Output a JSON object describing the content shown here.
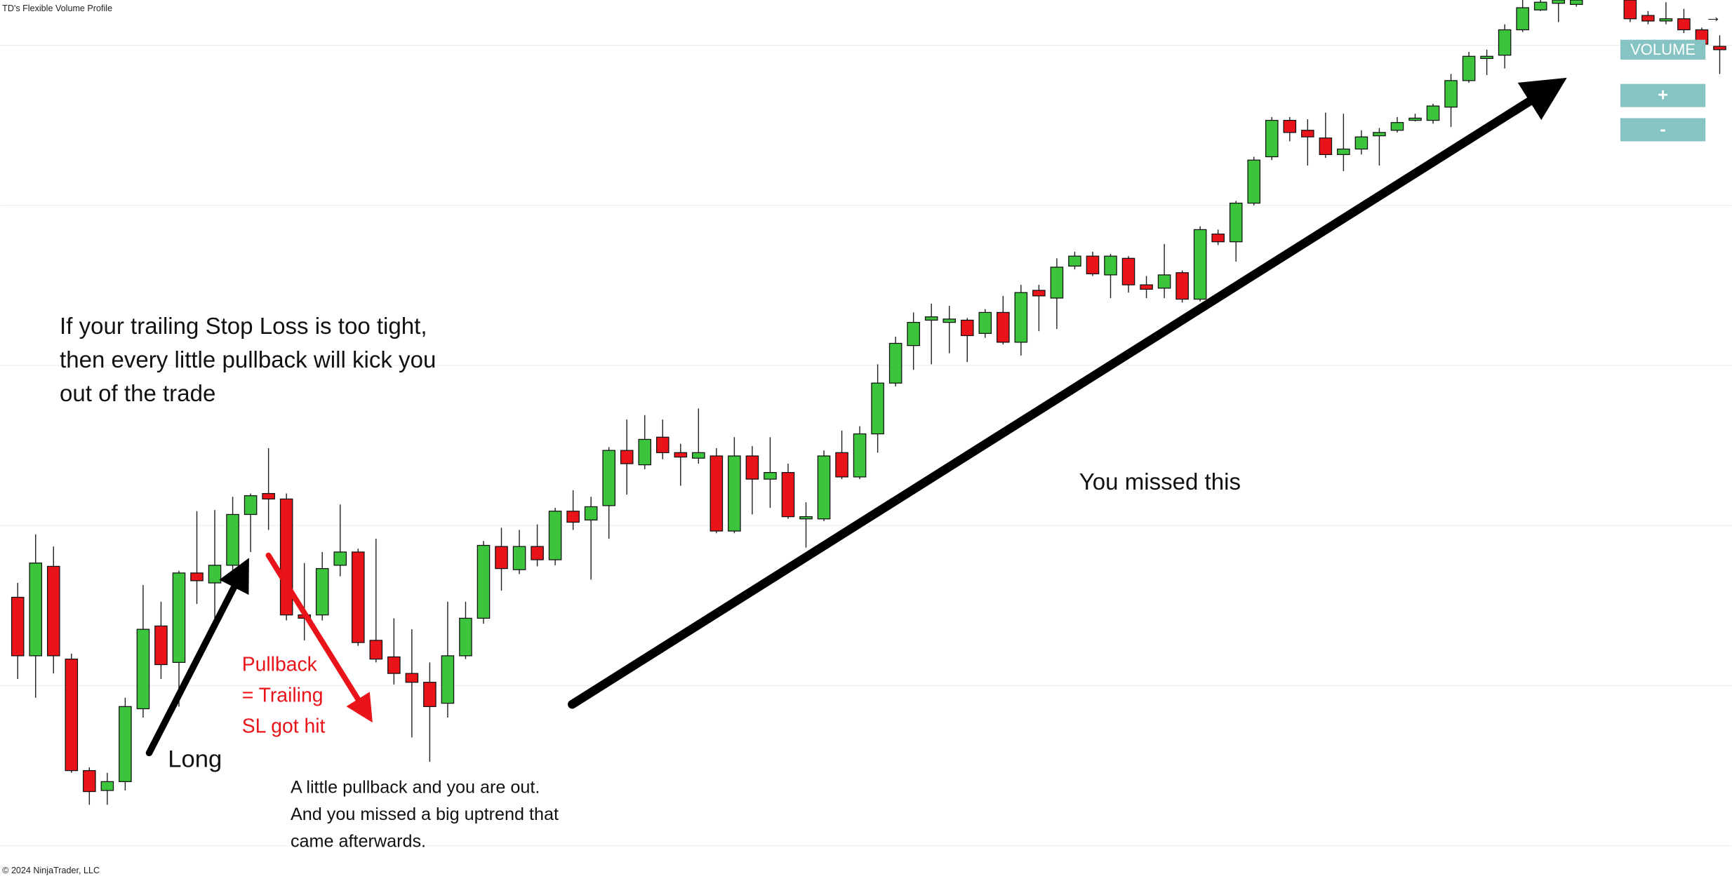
{
  "indicator_label": "TD's Flexible Volume Profile",
  "copyright": "© 2024 NinjaTrader, LLC",
  "buttons": [
    "VOLUME",
    "+",
    "-"
  ],
  "nav_arrow": "→",
  "chart_data": {
    "type": "candlestick",
    "up_color": "#3cc43c",
    "down_color": "#e8141a",
    "ylim": [
      0,
      797
    ],
    "open": [
      256,
      203,
      284,
      200,
      99,
      81,
      89,
      155,
      230,
      197,
      278,
      269,
      285,
      331,
      350,
      345,
      240,
      240,
      285,
      297,
      217,
      202,
      187,
      179,
      160,
      203,
      237,
      302,
      281,
      302,
      290,
      334,
      326,
      339,
      389,
      376,
      401,
      387,
      382,
      384,
      316,
      384,
      363,
      369,
      327,
      327,
      387,
      365,
      404,
      450,
      484,
      507,
      505,
      507,
      495,
      514,
      487,
      534,
      527,
      556,
      565,
      548,
      563,
      539,
      536,
      550,
      526,
      585,
      578,
      613,
      655,
      688,
      679,
      672,
      657,
      662,
      674,
      679,
      688,
      688,
      700,
      724,
      744,
      747,
      770,
      788,
      794,
      793,
      null,
      null,
      797,
      783,
      778,
      780,
      770,
      755
    ],
    "high": [
      269,
      313,
      302,
      205,
      102,
      97,
      165,
      267,
      252,
      280,
      334,
      335,
      347,
      350,
      391,
      350,
      287,
      297,
      340,
      300,
      309,
      237,
      227,
      197,
      252,
      252,
      307,
      319,
      317,
      322,
      337,
      353,
      347,
      392,
      417,
      421,
      417,
      395,
      427,
      391,
      401,
      393,
      401,
      377,
      342,
      389,
      407,
      411,
      467,
      492,
      514,
      522,
      520,
      509,
      517,
      529,
      539,
      539,
      563,
      569,
      569,
      567,
      565,
      547,
      576,
      552,
      592,
      589,
      615,
      655,
      691,
      691,
      689,
      695,
      694,
      679,
      681,
      691,
      694,
      703,
      730,
      750,
      752,
      775,
      797,
      797,
      797,
      797,
      null,
      null,
      797,
      787,
      795,
      789,
      772,
      765
    ],
    "low": [
      182,
      165,
      187,
      97,
      68,
      68,
      81,
      147,
      182,
      157,
      250,
      237,
      267,
      297,
      317,
      235,
      217,
      235,
      275,
      212,
      197,
      177,
      129,
      107,
      147,
      200,
      232,
      262,
      277,
      284,
      285,
      317,
      272,
      309,
      349,
      372,
      381,
      357,
      377,
      314,
      314,
      331,
      337,
      327,
      301,
      325,
      363,
      363,
      387,
      447,
      462,
      467,
      477,
      469,
      491,
      485,
      475,
      497,
      499,
      553,
      547,
      527,
      532,
      527,
      527,
      523,
      524,
      575,
      560,
      611,
      652,
      669,
      647,
      654,
      642,
      657,
      647,
      677,
      687,
      685,
      682,
      722,
      729,
      735,
      768,
      787,
      777,
      791,
      null,
      null,
      777,
      775,
      775,
      767,
      747,
      730
    ],
    "close": [
      203,
      287,
      203,
      99,
      80,
      89,
      157,
      227,
      195,
      278,
      271,
      285,
      331,
      348,
      345,
      240,
      237,
      282,
      297,
      215,
      200,
      187,
      179,
      157,
      203,
      237,
      303,
      282,
      302,
      290,
      334,
      324,
      338,
      389,
      377,
      399,
      387,
      383,
      387,
      316,
      384,
      363,
      369,
      329,
      329,
      384,
      365,
      404,
      450,
      486,
      505,
      510,
      508,
      493,
      514,
      487,
      532,
      529,
      555,
      565,
      549,
      565,
      539,
      535,
      548,
      526,
      589,
      578,
      613,
      652,
      688,
      677,
      673,
      657,
      662,
      673,
      677,
      686,
      690,
      701,
      724,
      746,
      746,
      770,
      790,
      795,
      797,
      797,
      null,
      null,
      780,
      778,
      780,
      770,
      757,
      752
    ],
    "annotations": [
      {
        "lines": [
          "If your trailing Stop Loss is too tight,",
          "then every little pullback will kick you",
          "out of the trade"
        ],
        "color": "#111111"
      },
      {
        "lines": [
          "Long"
        ],
        "color": "#111111"
      },
      {
        "lines": [
          "Pullback",
          "= Trailing",
          "SL got hit"
        ],
        "color": "#e8141a"
      },
      {
        "lines": [
          "A little pullback and you are out.",
          "And you missed a big uptrend that",
          "came afterwards."
        ],
        "color": "#111111"
      },
      {
        "lines": [
          "You missed this"
        ],
        "color": "#111111"
      }
    ]
  }
}
